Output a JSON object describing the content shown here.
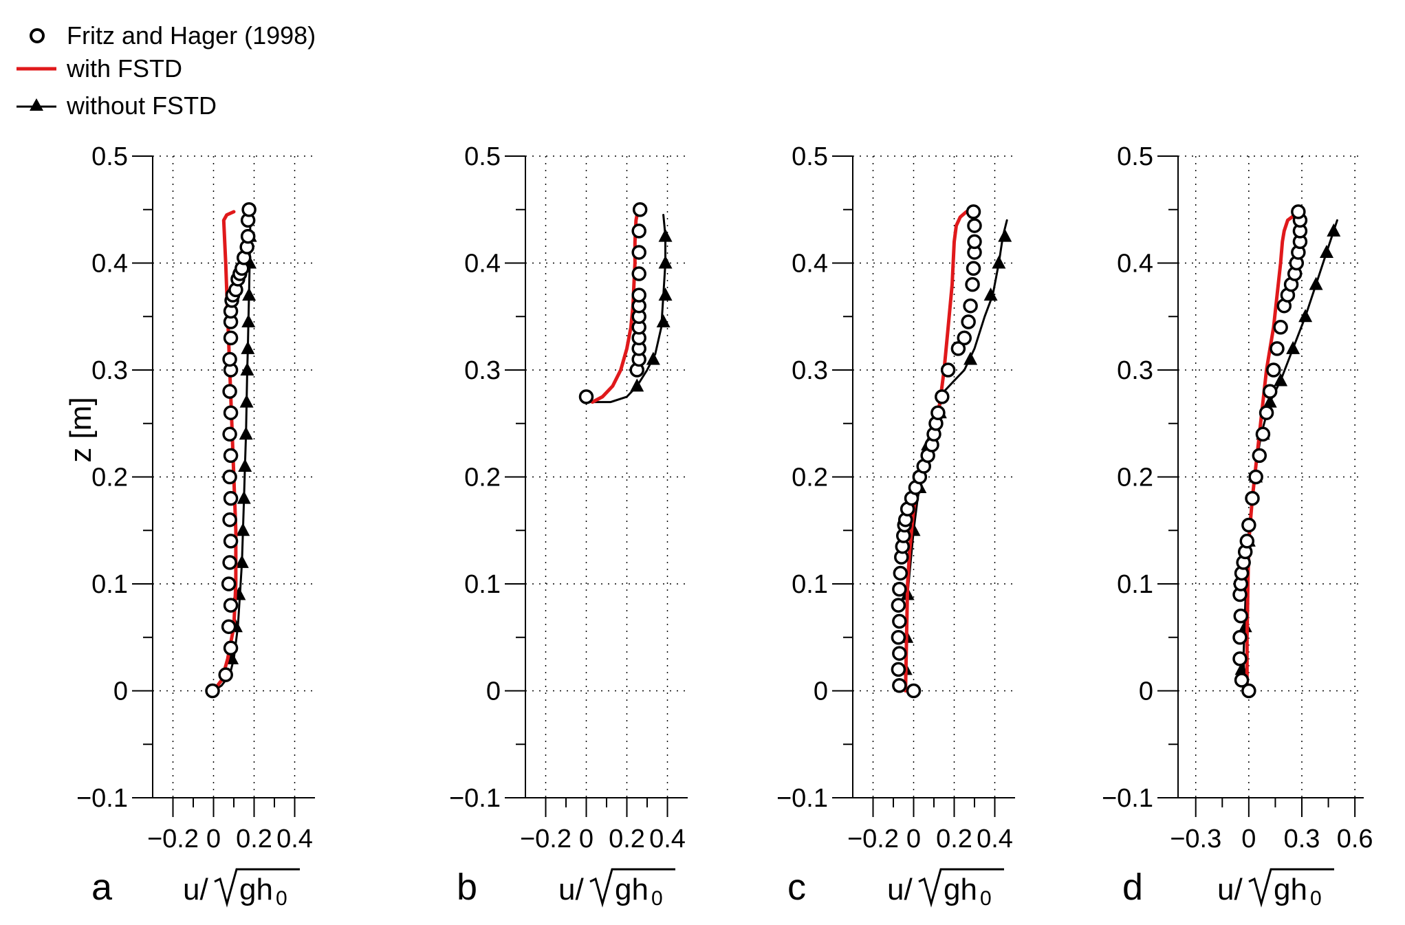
{
  "legend": {
    "items": [
      {
        "label": "Fritz and Hager (1998)",
        "marker": "open-circle"
      },
      {
        "label": "with FSTD",
        "marker": "red-line"
      },
      {
        "label": "without FSTD",
        "marker": "line-triangle"
      }
    ]
  },
  "colors": {
    "with_fstd": "#e0191b",
    "without_fstd": "#000000",
    "experiment": "#000000",
    "grid": "#000000"
  },
  "chart_data": [
    {
      "type": "line",
      "panel": "a",
      "xlabel": "u/√gh₀",
      "ylabel": "z [m]",
      "xlim": [
        -0.3,
        0.5
      ],
      "ylim": [
        -0.1,
        0.5
      ],
      "xticks": [
        -0.2,
        0,
        0.2,
        0.4
      ],
      "xtick_labels": [
        "−0.2",
        "0",
        "0.2",
        "0.4"
      ],
      "yticks": [
        -0.1,
        0,
        0.1,
        0.2,
        0.3,
        0.4,
        0.5
      ],
      "ytick_labels": [
        "−0.1",
        "0",
        "0.1",
        "0.2",
        "0.3",
        "0.4",
        "0.5"
      ],
      "series": [
        {
          "name": "Fritz and Hager (1998)",
          "kind": "scatter",
          "x": [
            -0.005,
            0.06,
            0.085,
            0.075,
            0.085,
            0.075,
            0.08,
            0.085,
            0.08,
            0.085,
            0.08,
            0.085,
            0.08,
            0.085,
            0.08,
            0.085,
            0.08,
            0.085,
            0.085,
            0.085,
            0.09,
            0.095,
            0.11,
            0.12,
            0.13,
            0.14,
            0.15,
            0.165,
            0.17,
            0.17,
            0.175
          ],
          "y": [
            0.0,
            0.015,
            0.04,
            0.06,
            0.08,
            0.1,
            0.12,
            0.14,
            0.16,
            0.18,
            0.2,
            0.22,
            0.24,
            0.26,
            0.28,
            0.3,
            0.31,
            0.33,
            0.345,
            0.355,
            0.365,
            0.37,
            0.375,
            0.385,
            0.39,
            0.395,
            0.405,
            0.415,
            0.425,
            0.44,
            0.45
          ]
        },
        {
          "name": "with FSTD",
          "kind": "line",
          "x": [
            0.0,
            0.04,
            0.07,
            0.1,
            0.11,
            0.11,
            0.1,
            0.09,
            0.08,
            0.07,
            0.06,
            0.05,
            0.065,
            0.1
          ],
          "y": [
            0.0,
            0.01,
            0.03,
            0.06,
            0.1,
            0.15,
            0.2,
            0.25,
            0.3,
            0.35,
            0.4,
            0.44,
            0.445,
            0.448
          ]
        },
        {
          "name": "without FSTD",
          "kind": "line-marker",
          "x": [
            0.0,
            0.04,
            0.08,
            0.1,
            0.12,
            0.13,
            0.14,
            0.145,
            0.15,
            0.155,
            0.16,
            0.163,
            0.166,
            0.169,
            0.172,
            0.175,
            0.178,
            0.18,
            0.182
          ],
          "y": [
            0.0,
            0.005,
            0.015,
            0.03,
            0.06,
            0.09,
            0.12,
            0.15,
            0.18,
            0.21,
            0.24,
            0.27,
            0.3,
            0.32,
            0.345,
            0.37,
            0.4,
            0.425,
            0.445
          ],
          "marker_x": [
            0.09,
            0.11,
            0.125,
            0.14,
            0.145,
            0.15,
            0.155,
            0.16,
            0.163,
            0.166,
            0.169,
            0.172,
            0.175,
            0.178,
            0.18
          ],
          "marker_y": [
            0.03,
            0.06,
            0.09,
            0.12,
            0.15,
            0.18,
            0.21,
            0.24,
            0.27,
            0.3,
            0.32,
            0.345,
            0.37,
            0.4,
            0.425
          ]
        }
      ]
    },
    {
      "type": "line",
      "panel": "b",
      "xlabel": "u/√gh₀",
      "ylabel": "",
      "xlim": [
        -0.3,
        0.5
      ],
      "ylim": [
        -0.1,
        0.5
      ],
      "xticks": [
        -0.2,
        0,
        0.2,
        0.4
      ],
      "xtick_labels": [
        "−0.2",
        "0",
        "0.2",
        "0.4"
      ],
      "yticks": [
        -0.1,
        0,
        0.1,
        0.2,
        0.3,
        0.4,
        0.5
      ],
      "ytick_labels": [
        "−0.1",
        "0",
        "0.1",
        "0.2",
        "0.3",
        "0.4",
        "0.5"
      ],
      "series": [
        {
          "name": "Fritz and Hager (1998)",
          "kind": "scatter",
          "x": [
            0.0,
            0.25,
            0.26,
            0.26,
            0.26,
            0.26,
            0.26,
            0.26,
            0.26,
            0.26,
            0.26,
            0.26,
            0.265
          ],
          "y": [
            0.275,
            0.3,
            0.31,
            0.32,
            0.33,
            0.34,
            0.35,
            0.36,
            0.37,
            0.39,
            0.41,
            0.43,
            0.45
          ]
        },
        {
          "name": "with FSTD",
          "kind": "line",
          "x": [
            0.03,
            0.08,
            0.13,
            0.17,
            0.2,
            0.22,
            0.23,
            0.235,
            0.24,
            0.24,
            0.245,
            0.25
          ],
          "y": [
            0.27,
            0.275,
            0.285,
            0.3,
            0.32,
            0.34,
            0.36,
            0.38,
            0.4,
            0.42,
            0.44,
            0.445
          ]
        },
        {
          "name": "without FSTD",
          "kind": "line-marker",
          "x": [
            0.0,
            0.12,
            0.2,
            0.25,
            0.3,
            0.34,
            0.37,
            0.38,
            0.39,
            0.39,
            0.385,
            0.38
          ],
          "y": [
            0.27,
            0.27,
            0.275,
            0.285,
            0.3,
            0.315,
            0.34,
            0.37,
            0.4,
            0.425,
            0.435,
            0.445
          ],
          "marker_x": [
            0.25,
            0.33,
            0.38,
            0.39,
            0.39,
            0.39
          ],
          "marker_y": [
            0.285,
            0.31,
            0.345,
            0.37,
            0.4,
            0.425
          ]
        }
      ]
    },
    {
      "type": "line",
      "panel": "c",
      "xlabel": "u/√gh₀",
      "ylabel": "",
      "xlim": [
        -0.3,
        0.5
      ],
      "ylim": [
        -0.1,
        0.5
      ],
      "xticks": [
        -0.2,
        0,
        0.2,
        0.4
      ],
      "xtick_labels": [
        "−0.2",
        "0",
        "0.2",
        "0.4"
      ],
      "yticks": [
        -0.1,
        0,
        0.1,
        0.2,
        0.3,
        0.4,
        0.5
      ],
      "ytick_labels": [
        "−0.1",
        "0",
        "0.1",
        "0.2",
        "0.3",
        "0.4",
        "0.5"
      ],
      "series": [
        {
          "name": "Fritz and Hager (1998)",
          "kind": "scatter",
          "x": [
            0.0,
            -0.07,
            -0.075,
            -0.07,
            -0.075,
            -0.07,
            -0.075,
            -0.07,
            -0.065,
            -0.06,
            -0.055,
            -0.05,
            -0.045,
            -0.04,
            -0.03,
            -0.01,
            0.01,
            0.03,
            0.05,
            0.07,
            0.09,
            0.1,
            0.11,
            0.12,
            0.14,
            0.17,
            0.22,
            0.25,
            0.27,
            0.28,
            0.29,
            0.295,
            0.3,
            0.3,
            0.3,
            0.295
          ],
          "y": [
            0.0,
            0.005,
            0.02,
            0.035,
            0.05,
            0.065,
            0.08,
            0.095,
            0.11,
            0.125,
            0.135,
            0.145,
            0.155,
            0.16,
            0.17,
            0.18,
            0.19,
            0.2,
            0.21,
            0.22,
            0.23,
            0.24,
            0.25,
            0.26,
            0.275,
            0.3,
            0.32,
            0.33,
            0.345,
            0.36,
            0.38,
            0.395,
            0.41,
            0.42,
            0.435,
            0.448
          ]
        },
        {
          "name": "with FSTD",
          "kind": "line",
          "x": [
            -0.04,
            -0.035,
            -0.03,
            -0.02,
            -0.01,
            0.0,
            0.02,
            0.05,
            0.08,
            0.11,
            0.13,
            0.15,
            0.17,
            0.19,
            0.2,
            0.21,
            0.23,
            0.26,
            0.29
          ],
          "y": [
            0.0,
            0.05,
            0.1,
            0.13,
            0.15,
            0.17,
            0.19,
            0.21,
            0.23,
            0.25,
            0.27,
            0.3,
            0.34,
            0.38,
            0.42,
            0.435,
            0.443,
            0.448,
            0.45
          ]
        },
        {
          "name": "without FSTD",
          "kind": "line-marker",
          "x": [
            -0.045,
            -0.04,
            -0.035,
            -0.03,
            -0.02,
            0.0,
            0.02,
            0.05,
            0.08,
            0.12,
            0.15,
            0.2,
            0.25,
            0.3,
            0.35,
            0.39,
            0.42,
            0.44,
            0.46
          ],
          "y": [
            0.0,
            0.02,
            0.05,
            0.09,
            0.11,
            0.15,
            0.18,
            0.21,
            0.24,
            0.26,
            0.28,
            0.29,
            0.3,
            0.32,
            0.35,
            0.37,
            0.4,
            0.425,
            0.44
          ],
          "marker_x": [
            -0.04,
            -0.035,
            -0.03,
            0.0,
            0.03,
            0.07,
            0.13,
            0.28,
            0.38,
            0.42,
            0.45
          ],
          "marker_y": [
            0.02,
            0.05,
            0.09,
            0.15,
            0.19,
            0.23,
            0.26,
            0.31,
            0.37,
            0.4,
            0.425
          ]
        }
      ]
    },
    {
      "type": "line",
      "panel": "d",
      "xlabel": "u/√gh₀",
      "ylabel": "",
      "xlim": [
        -0.4,
        0.65
      ],
      "ylim": [
        -0.1,
        0.5
      ],
      "xticks": [
        -0.3,
        0,
        0.3,
        0.6
      ],
      "xtick_labels": [
        "−0.3",
        "0",
        "0.3",
        "0.6"
      ],
      "yticks": [
        -0.1,
        0,
        0.1,
        0.2,
        0.3,
        0.4,
        0.5
      ],
      "ytick_labels": [
        "−0.1",
        "0",
        "0.1",
        "0.2",
        "0.3",
        "0.4",
        "0.5"
      ],
      "series": [
        {
          "name": "Fritz and Hager (1998)",
          "kind": "scatter",
          "x": [
            0.0,
            -0.04,
            -0.05,
            -0.05,
            -0.045,
            -0.05,
            -0.045,
            -0.04,
            -0.03,
            -0.02,
            -0.01,
            0.0,
            0.02,
            0.04,
            0.06,
            0.08,
            0.1,
            0.12,
            0.14,
            0.16,
            0.18,
            0.2,
            0.22,
            0.24,
            0.26,
            0.27,
            0.28,
            0.29,
            0.29,
            0.29,
            0.28
          ],
          "y": [
            0.0,
            0.01,
            0.03,
            0.05,
            0.07,
            0.09,
            0.1,
            0.11,
            0.12,
            0.13,
            0.14,
            0.155,
            0.18,
            0.2,
            0.22,
            0.24,
            0.26,
            0.28,
            0.3,
            0.32,
            0.34,
            0.36,
            0.37,
            0.38,
            0.39,
            0.4,
            0.41,
            0.42,
            0.43,
            0.44,
            0.448
          ]
        },
        {
          "name": "with FSTD",
          "kind": "line",
          "x": [
            -0.01,
            -0.01,
            -0.005,
            0.0,
            0.02,
            0.04,
            0.06,
            0.08,
            0.1,
            0.12,
            0.14,
            0.16,
            0.18,
            0.19,
            0.2,
            0.22,
            0.26,
            0.28
          ],
          "y": [
            0.0,
            0.05,
            0.1,
            0.14,
            0.18,
            0.21,
            0.24,
            0.27,
            0.3,
            0.32,
            0.34,
            0.37,
            0.4,
            0.42,
            0.43,
            0.44,
            0.445,
            0.448
          ]
        },
        {
          "name": "without FSTD",
          "kind": "line-marker",
          "x": [
            -0.02,
            -0.03,
            -0.02,
            -0.01,
            0.0,
            0.03,
            0.07,
            0.12,
            0.18,
            0.25,
            0.32,
            0.38,
            0.44,
            0.48,
            0.5
          ],
          "y": [
            0.0,
            0.03,
            0.08,
            0.12,
            0.15,
            0.2,
            0.24,
            0.27,
            0.29,
            0.32,
            0.35,
            0.38,
            0.41,
            0.43,
            0.44
          ],
          "marker_x": [
            -0.04,
            -0.02,
            0.0,
            0.04,
            0.08,
            0.12,
            0.18,
            0.25,
            0.32,
            0.38,
            0.44,
            0.48
          ],
          "marker_y": [
            0.02,
            0.06,
            0.14,
            0.2,
            0.24,
            0.27,
            0.29,
            0.32,
            0.35,
            0.38,
            0.41,
            0.43
          ]
        }
      ]
    }
  ]
}
